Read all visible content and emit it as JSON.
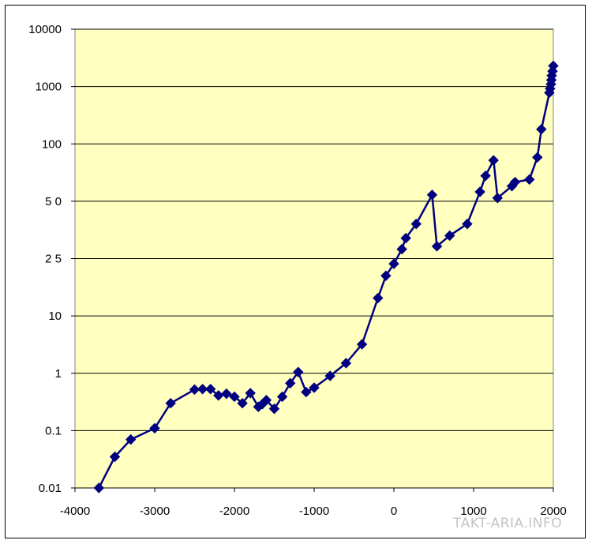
{
  "watermark": "TAKT-ARIA.INFO",
  "chart_data": {
    "type": "line",
    "title": "",
    "xlabel": "",
    "ylabel": "",
    "xlim": [
      -4000,
      2000
    ],
    "x_ticks": [
      -4000,
      -3000,
      -2000,
      -1000,
      0,
      1000,
      2000
    ],
    "y_scale": "log",
    "y_tick_values": [
      0.01,
      0.1,
      1,
      10,
      25,
      50,
      100,
      1000,
      10000
    ],
    "y_tick_labels": [
      "0.01",
      "0.1",
      "1",
      "10",
      "2 5",
      "5 0",
      "100",
      "1000",
      "10000"
    ],
    "grid": "horizontal",
    "legend": "none",
    "colors": {
      "plot_bg": "#ffffc0",
      "line": "#000080",
      "marker": "#000080"
    },
    "series": [
      {
        "marker": "diamond",
        "points": [
          [
            -3700,
            0.01
          ],
          [
            -3500,
            0.035
          ],
          [
            -3300,
            0.07
          ],
          [
            -3000,
            0.11
          ],
          [
            -2800,
            0.3
          ],
          [
            -2500,
            0.52
          ],
          [
            -2400,
            0.53
          ],
          [
            -2300,
            0.53
          ],
          [
            -2200,
            0.41
          ],
          [
            -2100,
            0.44
          ],
          [
            -2000,
            0.39
          ],
          [
            -1900,
            0.3
          ],
          [
            -1800,
            0.45
          ],
          [
            -1700,
            0.26
          ],
          [
            -1650,
            0.29
          ],
          [
            -1600,
            0.34
          ],
          [
            -1500,
            0.24
          ],
          [
            -1400,
            0.39
          ],
          [
            -1300,
            0.67
          ],
          [
            -1200,
            1.05
          ],
          [
            -1100,
            0.47
          ],
          [
            -1000,
            0.56
          ],
          [
            -800,
            0.9
          ],
          [
            -600,
            1.5
          ],
          [
            -400,
            3.2
          ],
          [
            -200,
            13.3
          ],
          [
            -100,
            19
          ],
          [
            0,
            23
          ],
          [
            100,
            28
          ],
          [
            150,
            32
          ],
          [
            280,
            38
          ],
          [
            480,
            54
          ],
          [
            540,
            29
          ],
          [
            700,
            33
          ],
          [
            920,
            38
          ],
          [
            1080,
            56
          ],
          [
            1150,
            68
          ],
          [
            1250,
            82
          ],
          [
            1300,
            52
          ],
          [
            1480,
            60
          ],
          [
            1520,
            63
          ],
          [
            1700,
            65
          ],
          [
            1800,
            85
          ],
          [
            1850,
            180
          ],
          [
            1950,
            780
          ],
          [
            1960,
            920
          ],
          [
            1970,
            1100
          ],
          [
            1975,
            1300
          ],
          [
            1980,
            1550
          ],
          [
            1990,
            1850
          ],
          [
            2000,
            2300
          ]
        ]
      }
    ]
  }
}
